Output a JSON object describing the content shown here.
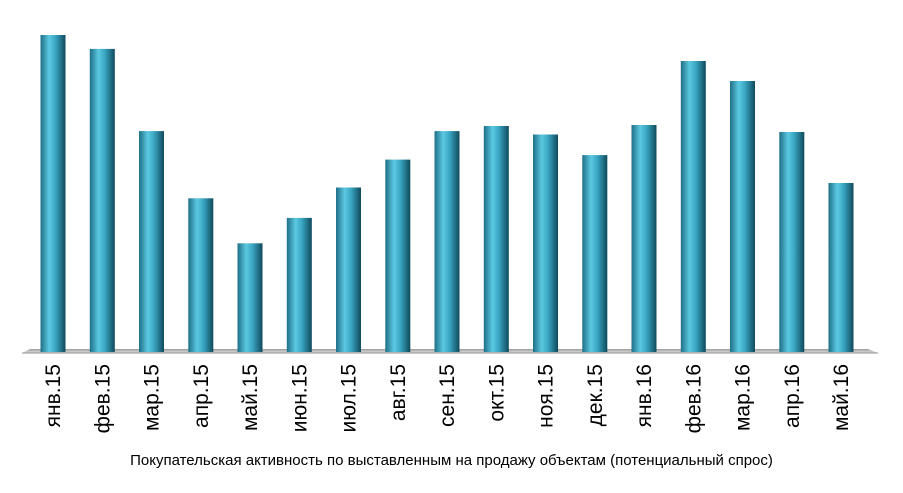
{
  "chart_data": {
    "type": "bar",
    "categories": [
      "янв.15",
      "фев.15",
      "мар.15",
      "апр.15",
      "май.15",
      "июн.15",
      "июл.15",
      "авг.15",
      "сен.15",
      "окт.15",
      "ноя.15",
      "дек.15",
      "янв.16",
      "фев.16",
      "мар.16",
      "апр.16",
      "май.16"
    ],
    "values": [
      100,
      95.6,
      69.7,
      48.5,
      34.3,
      42.3,
      51.9,
      60.7,
      69.7,
      71.3,
      68.6,
      62.1,
      71.6,
      91.8,
      85.5,
      69.4,
      53.3
    ],
    "xlabel": "Покупательская активность по выставленным на продажу объектам (потенциальный спрос)",
    "ylabel": "",
    "ylim": [
      0,
      100
    ],
    "grid": false,
    "legend": "none",
    "bar_color": "#3aa6c2"
  }
}
